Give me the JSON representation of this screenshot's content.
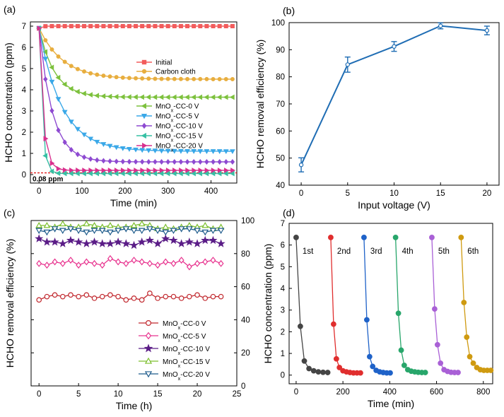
{
  "panels": [
    {
      "id": "a",
      "label": "(a)",
      "xlabel": "Time (min)",
      "ylabel": "HCHO concentration (ppm)",
      "threshold_label": "0.08 ppm",
      "legend": [
        {
          "key": "initial",
          "text": "Initial"
        },
        {
          "key": "cloth",
          "text": "Carbon cloth"
        },
        {
          "key": "cc0",
          "pre": "MnO",
          "sub": "x",
          "post": "-CC-0 V"
        },
        {
          "key": "cc5",
          "pre": "MnO",
          "sub": "x",
          "post": "-CC-5 V"
        },
        {
          "key": "cc10",
          "pre": "MnO",
          "sub": "x",
          "post": "-CC-10 V"
        },
        {
          "key": "cc15",
          "pre": "MnO",
          "sub": "x",
          "post": "-CC-15 V"
        },
        {
          "key": "cc20",
          "pre": "MnO",
          "sub": "x",
          "post": "-CC-20 V"
        }
      ]
    },
    {
      "id": "b",
      "label": "(b)",
      "xlabel": "Input voltage (V)",
      "ylabel": "HCHO removal efficiency (%)"
    },
    {
      "id": "c",
      "label": "(c)",
      "xlabel": "Time (h)",
      "ylabel": "HCHO removal efficiency (%)",
      "legend": [
        {
          "pre": "MnO",
          "sub": "x",
          "post": "-CC-0 V"
        },
        {
          "pre": "MnO",
          "sub": "x",
          "post": "-CC-5 V"
        },
        {
          "pre": "MnO",
          "sub": "x",
          "post": "-CC-10 V"
        },
        {
          "pre": "MnO",
          "sub": "x",
          "post": "-CC-15 V"
        },
        {
          "pre": "MnO",
          "sub": "x",
          "post": "-CC-20 V"
        }
      ]
    },
    {
      "id": "d",
      "label": "(d)",
      "xlabel": "Time (min)",
      "ylabel": "HCHO concentration (ppm)",
      "cycle_labels": [
        "1st",
        "2nd",
        "3rd",
        "4th",
        "5th",
        "6th"
      ]
    }
  ],
  "chart_data": [
    {
      "type": "line",
      "panel": "a",
      "xlim": [
        -20,
        460
      ],
      "ylim": [
        -0.4,
        7.2
      ],
      "xticks": [
        0,
        100,
        200,
        300,
        400
      ],
      "yticks": [
        0,
        1,
        2,
        3,
        4,
        5,
        6,
        7
      ],
      "threshold": 0.08,
      "colors": {
        "initial": "#f25c5c",
        "cloth": "#e8ae3f",
        "cc0": "#7dc13d",
        "cc5": "#3aa8e8",
        "cc10": "#8e4ad1",
        "cc15": "#37c0a4",
        "cc20": "#d9308e"
      },
      "series": [
        {
          "key": "initial",
          "y0": 6.9,
          "plateau": 7.0,
          "k": 0.2,
          "marker": "square"
        },
        {
          "key": "cloth",
          "y0": 6.9,
          "plateau": 4.5,
          "k": 0.018,
          "marker": "circle"
        },
        {
          "key": "cc0",
          "y0": 6.9,
          "plateau": 3.65,
          "k": 0.028,
          "marker": "triangle-left"
        },
        {
          "key": "cc5",
          "y0": 6.9,
          "plateau": 1.1,
          "k": 0.019,
          "marker": "triangle-down"
        },
        {
          "key": "cc10",
          "y0": 6.9,
          "plateau": 0.6,
          "k": 0.032,
          "marker": "diamond"
        },
        {
          "key": "cc15",
          "y0": 6.9,
          "plateau": 0.05,
          "k": 0.14,
          "marker": "triangle-left"
        },
        {
          "key": "cc20",
          "y0": 6.9,
          "plateau": 0.2,
          "k": 0.1,
          "marker": "triangle-right"
        }
      ]
    },
    {
      "type": "line",
      "panel": "b",
      "x": [
        0,
        5,
        10,
        15,
        20
      ],
      "y": [
        47.5,
        84.5,
        91.2,
        98.8,
        97.1
      ],
      "err": [
        2.6,
        2.8,
        1.8,
        1.1,
        1.6
      ],
      "xlim": [
        -1.3,
        21.3
      ],
      "ylim": [
        40,
        100
      ],
      "xticks": [
        0,
        5,
        10,
        15,
        20
      ],
      "yticks": [
        40,
        50,
        60,
        70,
        80,
        90,
        100
      ],
      "color": "#1f6db4"
    },
    {
      "type": "line",
      "panel": "c",
      "x": [
        0,
        1,
        2,
        3,
        4,
        5,
        6,
        7,
        8,
        9,
        10,
        11,
        12,
        13,
        14,
        15,
        16,
        17,
        18,
        19,
        20,
        21,
        22,
        23
      ],
      "xlim": [
        -1,
        25
      ],
      "ylim": [
        0,
        100
      ],
      "xticks": [
        0,
        5,
        10,
        15,
        20,
        25
      ],
      "yticks": [
        0,
        20,
        40,
        60,
        80,
        100
      ],
      "series": [
        {
          "color": "#c1272d",
          "marker": "circle",
          "values": [
            52,
            54,
            55,
            54,
            55,
            54,
            55,
            53,
            54,
            55,
            54,
            52,
            53,
            52,
            56,
            53,
            54,
            54,
            53,
            54,
            55,
            53,
            54,
            54
          ]
        },
        {
          "color": "#e8348f",
          "marker": "diamond",
          "values": [
            74,
            73,
            75,
            74,
            76,
            73,
            75,
            74,
            73,
            77,
            75,
            74,
            76,
            75,
            74,
            73,
            75,
            74,
            76,
            72,
            74,
            75,
            76,
            74
          ]
        },
        {
          "color": "#5b1d87",
          "marker": "star",
          "values": [
            89,
            87,
            87,
            86,
            88,
            87,
            86,
            87,
            86,
            86,
            87,
            86,
            85,
            87,
            88,
            86,
            89,
            88,
            86,
            87,
            86,
            88,
            88,
            86
          ]
        },
        {
          "color": "#7dbf2f",
          "marker": "triangle-up",
          "values": [
            97,
            97,
            96,
            98,
            96,
            96,
            98,
            97,
            96,
            97,
            96,
            96,
            97,
            98,
            97,
            95,
            96,
            95,
            96,
            97,
            96,
            97,
            95,
            96
          ]
        },
        {
          "color": "#1f5c8c",
          "marker": "triangle-down",
          "values": [
            94,
            93,
            95,
            94,
            95,
            94,
            93,
            94,
            94,
            93,
            94,
            95,
            94,
            94,
            95,
            94,
            93,
            94,
            95,
            95,
            94,
            93,
            94,
            94
          ]
        }
      ]
    },
    {
      "type": "line",
      "panel": "d",
      "xlim": [
        -30,
        840
      ],
      "ylim": [
        -0.4,
        7
      ],
      "xticks": [
        0,
        200,
        400,
        600,
        800
      ],
      "yticks": [
        0,
        1,
        2,
        3,
        4,
        5,
        6,
        7
      ],
      "cycles": [
        {
          "color": "#454545",
          "x": [
            0,
            18,
            35,
            55,
            75,
            95,
            115,
            135
          ],
          "y": [
            6.35,
            2.25,
            0.65,
            0.3,
            0.2,
            0.15,
            0.13,
            0.12
          ]
        },
        {
          "color": "#e02e2e",
          "x": [
            148,
            160,
            172,
            185,
            200,
            215,
            230,
            245,
            260,
            275
          ],
          "y": [
            6.35,
            2.35,
            0.75,
            0.35,
            0.2,
            0.15,
            0.12,
            0.1,
            0.1,
            0.1
          ]
        },
        {
          "color": "#1f62c8",
          "x": [
            290,
            302,
            314,
            327,
            342,
            357,
            372,
            387,
            402
          ],
          "y": [
            6.35,
            2.55,
            0.85,
            0.4,
            0.22,
            0.15,
            0.12,
            0.1,
            0.1
          ]
        },
        {
          "color": "#28a66b",
          "x": [
            425,
            437,
            449,
            462,
            477,
            492,
            507,
            522,
            537,
            552
          ],
          "y": [
            6.35,
            2.85,
            1.15,
            0.45,
            0.25,
            0.18,
            0.15,
            0.13,
            0.12,
            0.12
          ]
        },
        {
          "color": "#a960d6",
          "x": [
            580,
            592,
            604,
            617,
            632,
            647,
            662,
            677,
            692
          ],
          "y": [
            6.35,
            3.05,
            1.4,
            0.55,
            0.25,
            0.17,
            0.13,
            0.12,
            0.12
          ]
        },
        {
          "color": "#cf9a10",
          "x": [
            705,
            717,
            729,
            742,
            757,
            772,
            787,
            802,
            817,
            832
          ],
          "y": [
            6.35,
            3.35,
            1.75,
            0.85,
            0.55,
            0.35,
            0.25,
            0.22,
            0.22,
            0.22
          ]
        }
      ]
    }
  ]
}
